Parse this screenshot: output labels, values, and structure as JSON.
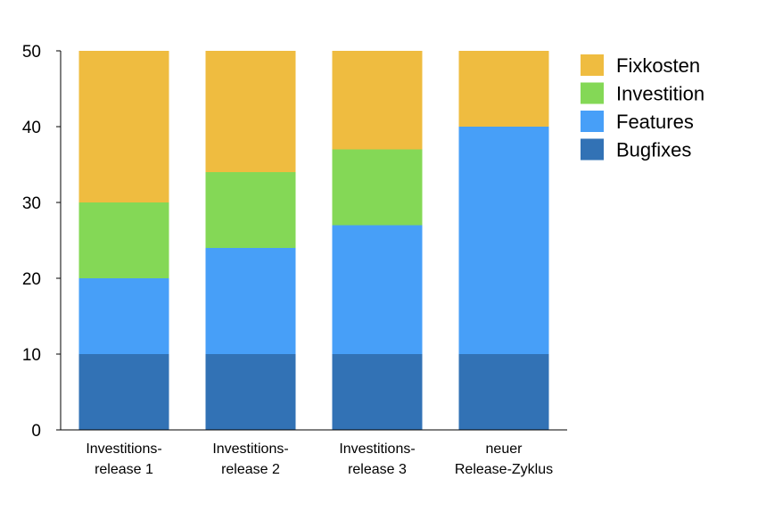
{
  "chart_data": {
    "type": "bar",
    "stacked": true,
    "categories": [
      [
        "Investitions-",
        "release 1"
      ],
      [
        "Investitions-",
        "release 2"
      ],
      [
        "Investitions-",
        "release 3"
      ],
      [
        "neuer",
        "Release-Zyklus"
      ]
    ],
    "series": [
      {
        "name": "Bugfixes",
        "color": "#3272b5",
        "values": [
          10,
          10,
          10,
          10
        ]
      },
      {
        "name": "Features",
        "color": "#479ff8",
        "values": [
          10,
          14,
          17,
          30
        ]
      },
      {
        "name": "Investition",
        "color": "#84d856",
        "values": [
          10,
          10,
          10,
          0
        ]
      },
      {
        "name": "Fixkosten",
        "color": "#efbc40",
        "values": [
          20,
          16,
          13,
          10
        ]
      }
    ],
    "legend_order": [
      "Fixkosten",
      "Investition",
      "Features",
      "Bugfixes"
    ],
    "legend_position": "top-right",
    "ylim": [
      0,
      50
    ],
    "yticks": [
      "0",
      "10",
      "20",
      "30",
      "40",
      "50"
    ],
    "grid": false,
    "title": "",
    "xlabel": "",
    "ylabel": ""
  }
}
